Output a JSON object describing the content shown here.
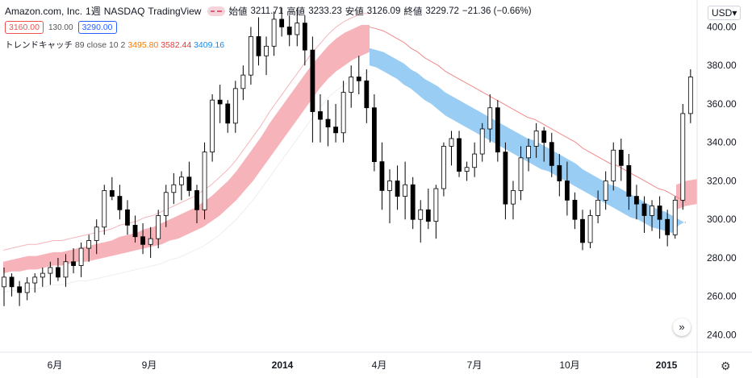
{
  "header": {
    "symbol": "Amazon.com, Inc.",
    "interval": "1週",
    "exchange": "NASDAQ",
    "source": "TradingView",
    "open_label": "始値",
    "open": "3211.71",
    "high_label": "高値",
    "high": "3233.23",
    "low_label": "安値",
    "low": "3126.09",
    "close_label": "終値",
    "close": "3229.72",
    "change": "−21.36 (−0.66%)"
  },
  "order": {
    "sell": "3160.00",
    "spread": "130.00",
    "buy": "3290.00"
  },
  "indicator": {
    "name": "トレンドキャッチ",
    "params": "89 close 10 2",
    "v1": "3495.80",
    "v2": "3582.44",
    "v3": "3409.16"
  },
  "currency": "USD",
  "icons": {
    "expand": "double-chevron-right-icon",
    "settings": "gear-icon",
    "currency_dropdown": "chevron-down-icon"
  },
  "colors": {
    "up_candle": "#ffffff",
    "down_candle": "#000000",
    "band_bull": "#f4a6ad",
    "band_bear": "#8fc8f2"
  },
  "chart_data": {
    "type": "candlestick",
    "x_ticks": [
      "6月",
      "9月",
      "2014",
      "4月",
      "7月",
      "10月",
      "2015"
    ],
    "y_ticks": [
      240,
      260,
      280,
      300,
      320,
      340,
      360,
      380,
      400
    ],
    "ylim": [
      231,
      414
    ],
    "grid": false,
    "candles": [
      [
        265,
        275,
        255,
        270
      ],
      [
        270,
        272,
        260,
        265
      ],
      [
        265,
        268,
        255,
        262
      ],
      [
        262,
        270,
        258,
        267
      ],
      [
        267,
        272,
        262,
        270
      ],
      [
        270,
        275,
        265,
        272
      ],
      [
        272,
        278,
        266,
        275
      ],
      [
        275,
        280,
        268,
        270
      ],
      [
        270,
        282,
        265,
        278
      ],
      [
        278,
        285,
        272,
        276
      ],
      [
        276,
        288,
        270,
        285
      ],
      [
        285,
        292,
        278,
        289
      ],
      [
        289,
        300,
        282,
        296
      ],
      [
        296,
        318,
        292,
        315
      ],
      [
        315,
        322,
        310,
        312
      ],
      [
        312,
        318,
        300,
        305
      ],
      [
        305,
        310,
        292,
        297
      ],
      [
        297,
        302,
        288,
        291
      ],
      [
        291,
        298,
        282,
        287
      ],
      [
        287,
        296,
        280,
        290
      ],
      [
        290,
        305,
        285,
        302
      ],
      [
        302,
        318,
        296,
        314
      ],
      [
        314,
        324,
        308,
        318
      ],
      [
        318,
        325,
        310,
        322
      ],
      [
        322,
        330,
        312,
        315
      ],
      [
        315,
        318,
        298,
        305
      ],
      [
        305,
        340,
        300,
        335
      ],
      [
        335,
        365,
        330,
        362
      ],
      [
        362,
        370,
        350,
        360
      ],
      [
        360,
        362,
        345,
        350
      ],
      [
        350,
        372,
        345,
        368
      ],
      [
        368,
        380,
        362,
        375
      ],
      [
        375,
        400,
        370,
        395
      ],
      [
        395,
        405,
        380,
        385
      ],
      [
        385,
        395,
        375,
        390
      ],
      [
        390,
        408,
        385,
        404
      ],
      [
        404,
        410,
        395,
        400
      ],
      [
        400,
        406,
        390,
        396
      ],
      [
        396,
        410,
        390,
        402
      ],
      [
        402,
        406,
        380,
        388
      ],
      [
        388,
        395,
        340,
        356
      ],
      [
        356,
        365,
        340,
        352
      ],
      [
        352,
        362,
        338,
        348
      ],
      [
        348,
        360,
        340,
        345
      ],
      [
        345,
        372,
        340,
        366
      ],
      [
        366,
        380,
        358,
        374
      ],
      [
        374,
        385,
        365,
        372
      ],
      [
        372,
        378,
        350,
        358
      ],
      [
        358,
        365,
        325,
        330
      ],
      [
        330,
        340,
        305,
        315
      ],
      [
        315,
        326,
        298,
        320
      ],
      [
        320,
        328,
        305,
        312
      ],
      [
        312,
        330,
        300,
        318
      ],
      [
        318,
        322,
        295,
        300
      ],
      [
        300,
        310,
        288,
        305
      ],
      [
        305,
        316,
        295,
        299
      ],
      [
        299,
        318,
        290,
        316
      ],
      [
        316,
        340,
        312,
        338
      ],
      [
        338,
        346,
        328,
        342
      ],
      [
        342,
        346,
        322,
        325
      ],
      [
        325,
        330,
        320,
        327
      ],
      [
        327,
        340,
        322,
        334
      ],
      [
        334,
        350,
        330,
        347
      ],
      [
        347,
        365,
        340,
        358
      ],
      [
        358,
        362,
        330,
        335
      ],
      [
        335,
        340,
        300,
        308
      ],
      [
        308,
        320,
        300,
        315
      ],
      [
        315,
        338,
        310,
        332
      ],
      [
        332,
        342,
        325,
        338
      ],
      [
        338,
        350,
        332,
        346
      ],
      [
        346,
        348,
        330,
        340
      ],
      [
        340,
        345,
        322,
        328
      ],
      [
        328,
        334,
        312,
        320
      ],
      [
        320,
        330,
        302,
        310
      ],
      [
        310,
        314,
        295,
        300
      ],
      [
        300,
        305,
        284,
        288
      ],
      [
        288,
        305,
        285,
        302
      ],
      [
        302,
        315,
        298,
        310
      ],
      [
        310,
        325,
        305,
        320
      ],
      [
        320,
        340,
        315,
        336
      ],
      [
        336,
        342,
        320,
        328
      ],
      [
        328,
        334,
        305,
        312
      ],
      [
        312,
        318,
        300,
        308
      ],
      [
        308,
        312,
        293,
        302
      ],
      [
        302,
        310,
        294,
        307
      ],
      [
        307,
        312,
        290,
        300
      ],
      [
        300,
        305,
        286,
        292
      ],
      [
        292,
        312,
        290,
        310
      ],
      [
        310,
        360,
        305,
        355
      ],
      [
        355,
        378,
        350,
        374
      ]
    ],
    "trend_band": {
      "upper": [
        278,
        279,
        280,
        281,
        281,
        282,
        283,
        283,
        284,
        285,
        286,
        287,
        288,
        289,
        291,
        292,
        293,
        295,
        296,
        298,
        300,
        302,
        304,
        306,
        309,
        312,
        316,
        320,
        325,
        331,
        337,
        343,
        350,
        356,
        362,
        368,
        374,
        380,
        385,
        390,
        394,
        397,
        399,
        401,
        401
      ],
      "lower": [
        272,
        273,
        273,
        274,
        274,
        275,
        276,
        276,
        277,
        278,
        278,
        279,
        280,
        281,
        282,
        283,
        284,
        285,
        286,
        287,
        289,
        290,
        292,
        294,
        296,
        299,
        302,
        306,
        310,
        315,
        320,
        326,
        332,
        338,
        344,
        350,
        356,
        362,
        368,
        373,
        377,
        380,
        383,
        385,
        387
      ],
      "bear_upper": [
        389,
        388,
        387,
        385,
        383,
        381,
        378,
        376,
        373,
        371,
        369,
        366,
        364,
        362,
        360,
        358,
        356,
        354,
        352,
        350,
        348,
        346,
        344,
        342,
        341,
        339,
        337,
        335,
        333,
        331,
        329,
        326,
        324,
        322,
        320,
        318,
        317,
        315,
        313,
        311,
        309,
        307,
        305,
        304,
        302,
        300,
        298
      ],
      "bear_lower": [
        380,
        379,
        377,
        375,
        373,
        370,
        368,
        365,
        362,
        360,
        357,
        354,
        352,
        350,
        348,
        346,
        344,
        342,
        340,
        338,
        336,
        334,
        332,
        330,
        328,
        326,
        325,
        323,
        321,
        319,
        317,
        315,
        313,
        311,
        309,
        307,
        305,
        303,
        301,
        300,
        298,
        296,
        295,
        294,
        293,
        297,
        299
      ],
      "bull_tail_upper": [
        318,
        320,
        321
      ],
      "bull_tail_lower": [
        305,
        307,
        308
      ]
    }
  }
}
